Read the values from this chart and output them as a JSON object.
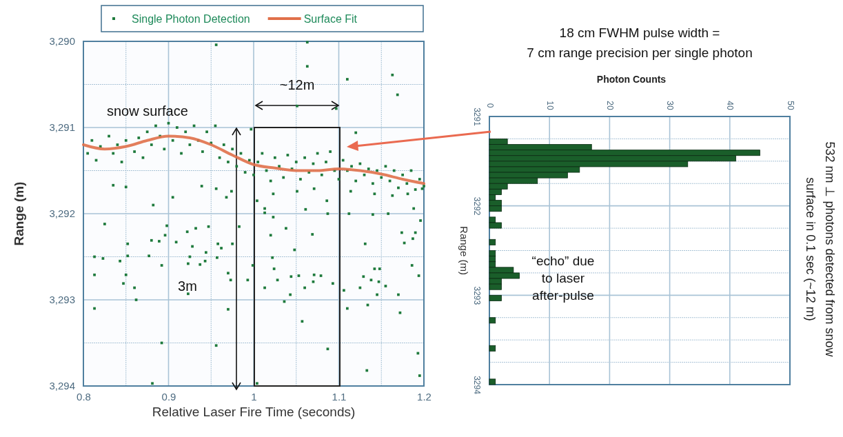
{
  "chart_data": [
    {
      "type": "scatter",
      "xlabel": "Relative Laser Fire Time (seconds)",
      "ylabel": "Range (m)",
      "xlim": [
        0.8,
        1.2
      ],
      "xticks": [
        0.8,
        {
          "value": 0.85,
          "label": null
        },
        0.9,
        {
          "value": 0.95,
          "label": null
        },
        1,
        {
          "value": 1.05,
          "label": null
        },
        1.1,
        {
          "value": 1.15,
          "label": null
        },
        1.2
      ],
      "ylim": [
        3294,
        3290
      ],
      "yticks": [
        {
          "value": 3290,
          "label": "3,290"
        },
        {
          "value": 3290.5,
          "label": null
        },
        {
          "value": 3291,
          "label": "3,291"
        },
        {
          "value": 3291.5,
          "label": null
        },
        {
          "value": 3292,
          "label": "3,292"
        },
        {
          "value": 3292.5,
          "label": null
        },
        {
          "value": 3293,
          "label": "3,293"
        },
        {
          "value": 3293.5,
          "label": null
        },
        {
          "value": 3294,
          "label": "3,294"
        }
      ],
      "grid": true,
      "legend": "top",
      "annotations": [
        "snow surface",
        "~12m",
        "3m"
      ],
      "series": [
        {
          "name": "Single Photon Detection",
          "type": "scatter",
          "color": "#1e7a3c",
          "marker": "square",
          "x": [
            0.825,
            0.813,
            0.813,
            0.813,
            0.823,
            0.843,
            0.847,
            0.85,
            0.852,
            0.852,
            0.86,
            0.862,
            0.877,
            0.88,
            0.881,
            0.889,
            0.892,
            0.892,
            0.896,
            0.898,
            0.909,
            0.922,
            0.923,
            0.923,
            0.925,
            0.928,
            0.932,
            0.937,
            0.943,
            0.944,
            0.947,
            0.956,
            0.957,
            0.958,
            0.962,
            0.97,
            0.97,
            0.973,
            0.975,
            0.983,
            0.993,
            0.999,
            1.004,
            1.013,
            1.013,
            1.02,
            1.022,
            1.023,
            1.024,
            1.028,
            1.036,
            1.038,
            1.043,
            1.044,
            1.048,
            1.053,
            1.057,
            1.06,
            1.061,
            1.069,
            1.07,
            1.071,
            1.079,
            1.087,
            1.087,
            1.093,
            1.106,
            1.11,
            1.112,
            1.125,
            1.129,
            1.131,
            1.134,
            1.133,
            1.138,
            1.14,
            1.142,
            1.145,
            1.147,
            1.148,
            1.155,
            1.158,
            1.17,
            1.172,
            1.174,
            1.177,
            1.186,
            1.187,
            1.19,
            1.193,
            1.194,
            1.195,
            1.196,
            0.956,
            1.063,
            1.063,
            1.11,
            1.163,
            1.169,
            1.051,
            1.097,
            1.12,
            0.997,
            0.882,
            0.905,
            0.85,
            0.835,
            0.939,
            0.956,
            0.968,
            0.974,
            1.004,
            1.013,
            1.023,
            1.051,
            1.071,
            1.086,
            1.114,
            1.142,
            1.163,
            1.181,
            1.198,
            1.188,
            0.805,
            0.81,
            0.815,
            0.82,
            0.83,
            0.835,
            0.84,
            0.845,
            0.85,
            0.86,
            0.865,
            0.87,
            0.875,
            0.88,
            0.885,
            0.89,
            0.895,
            0.9,
            0.905,
            0.91,
            0.915,
            0.92,
            0.925,
            0.93,
            0.935,
            0.94,
            0.945,
            0.95,
            0.955,
            0.96,
            0.965,
            0.97,
            0.975,
            0.98,
            0.985,
            0.99,
            0.995,
            1.0,
            1.005,
            1.01,
            1.015,
            1.02,
            1.025,
            1.03,
            1.035,
            1.04,
            1.045,
            1.05,
            1.055,
            1.06,
            1.065,
            1.07,
            1.075,
            1.08,
            1.085,
            1.09,
            1.095,
            1.1,
            1.105,
            1.11,
            1.115,
            1.12,
            1.125,
            1.13,
            1.135,
            1.14,
            1.145,
            1.15,
            1.155,
            1.16,
            1.165,
            1.17,
            1.175,
            1.18,
            1.185,
            1.19,
            1.195,
            1.2
          ],
          "values": [
            3292.12,
            3292.5,
            3292.71,
            3293.1,
            3292.52,
            3292.55,
            3292.81,
            3292.71,
            3292.35,
            3292.49,
            3292.86,
            3293.0,
            3292.49,
            3292.31,
            3293.97,
            3292.32,
            3292.6,
            3293.5,
            3292.25,
            3292.14,
            3292.33,
            3292.21,
            3292.93,
            3292.58,
            3292.5,
            3292.38,
            3292.17,
            3292.59,
            3292.55,
            3292.45,
            3292.15,
            3293.53,
            3292.51,
            3292.35,
            3292.4,
            3292.69,
            3293.11,
            3292.77,
            3292.35,
            3292.15,
            3292.77,
            3292.6,
            3293.97,
            3291.99,
            3292.86,
            3292.25,
            3292.51,
            3292.04,
            3292.64,
            3292.77,
            3293.02,
            3292.17,
            3292.94,
            3292.73,
            3292.42,
            3292.72,
            3293.25,
            3292.86,
            3291.95,
            3292.24,
            3292.79,
            3292.71,
            3292.72,
            3293.57,
            3292.0,
            3292.81,
            3292.89,
            3293.1,
            3292.0,
            3292.86,
            3292.73,
            3292.35,
            3293.06,
            3293.82,
            3292.77,
            3292.01,
            3292.64,
            3292.94,
            3292.79,
            3292.64,
            3292.84,
            3292.0,
            3292.94,
            3293.15,
            3292.22,
            3292.34,
            3292.6,
            3292.29,
            3292.22,
            3293.62,
            3292.72,
            3293.88,
            3292.08,
            3290.04,
            3290.01,
            3290.29,
            3290.44,
            3290.39,
            3290.62,
            3290.75,
            3290.78,
            3291.06,
            3291.02,
            3291.9,
            3291.81,
            3291.69,
            3291.67,
            3291.68,
            3291.71,
            3291.81,
            3291.74,
            3291.85,
            3291.94,
            3291.77,
            3291.74,
            3291.71,
            3291.85,
            3291.74,
            3291.77,
            3291.79,
            3291.77,
            3291.71,
            3291.94,
            3291.3,
            3291.15,
            3291.38,
            3291.22,
            3291.1,
            3291.3,
            3291.2,
            3291.4,
            3291.15,
            3291.28,
            3291.12,
            3291.35,
            3291.05,
            3291.2,
            3290.98,
            3291.1,
            3291.25,
            3290.95,
            3291.15,
            3291.0,
            3291.3,
            3291.05,
            3291.2,
            3290.98,
            3291.15,
            3291.28,
            3291.05,
            3291.18,
            3290.98,
            3291.35,
            3291.2,
            3291.4,
            3291.25,
            3291.45,
            3291.3,
            3291.52,
            3291.38,
            3291.55,
            3291.4,
            3291.3,
            3291.5,
            3291.62,
            3291.35,
            3291.45,
            3291.58,
            3291.32,
            3291.48,
            3291.4,
            3291.6,
            3291.35,
            3291.52,
            3291.42,
            3291.3,
            3291.55,
            3291.4,
            3291.28,
            3291.5,
            3291.6,
            3291.38,
            3291.5,
            3291.45,
            3291.62,
            3291.42,
            3291.55,
            3291.48,
            3291.65,
            3291.5,
            3291.58,
            3291.45,
            3291.62,
            3291.5,
            3291.7,
            3291.55,
            3291.65,
            3291.5,
            3291.72,
            3291.6,
            3291.68
          ]
        },
        {
          "name": "Surface Fit",
          "type": "line",
          "color": "#e0704a",
          "line_style": "solid",
          "marker": "none",
          "x": [
            0.8,
            0.825,
            0.85,
            0.875,
            0.9,
            0.925,
            0.95,
            0.975,
            1.0,
            1.025,
            1.05,
            1.075,
            1.1,
            1.125,
            1.15,
            1.175,
            1.2
          ],
          "values": [
            3291.2,
            3291.25,
            3291.22,
            3291.15,
            3291.1,
            3291.12,
            3291.2,
            3291.32,
            3291.43,
            3291.47,
            3291.5,
            3291.5,
            3291.48,
            3291.5,
            3291.54,
            3291.6,
            3291.65
          ]
        }
      ]
    },
    {
      "type": "histogram",
      "orientation": "horizontal",
      "title": "18 cm FWHM pulse width =",
      "subtitle": "7 cm range precision per single photon",
      "xlabel": "Photon Counts",
      "ylabel": "Range (m)",
      "y2label": "532 nm ⊥ photons detected from snow surface in 0.1 sec (~12 m)",
      "xlim": [
        0,
        50
      ],
      "xticks": [
        0,
        10,
        20,
        30,
        40,
        50
      ],
      "ylim": [
        3294,
        3291
      ],
      "yticks": [
        3291,
        {
          "value": 3291.25,
          "label": null
        },
        {
          "value": 3291.5,
          "label": null
        },
        {
          "value": 3291.75,
          "label": null
        },
        3292,
        {
          "value": 3292.25,
          "label": null
        },
        {
          "value": 3292.5,
          "label": null
        },
        {
          "value": 3292.75,
          "label": null
        },
        3293,
        {
          "value": 3293.25,
          "label": null
        },
        {
          "value": 3293.5,
          "label": null
        },
        {
          "value": 3293.75,
          "label": null
        },
        3294
      ],
      "grid": true,
      "color": "#1a5e2a",
      "annotations": [
        "“echo” due to laser after-pulse"
      ],
      "bins": [
        3291.25,
        3291.3125,
        3291.375,
        3291.4375,
        3291.5,
        3291.5625,
        3291.625,
        3291.6875,
        3291.75,
        3291.8125,
        3291.875,
        3291.9375,
        3292,
        3292.0625,
        3292.125,
        3292.1875,
        3292.25,
        3292.3125,
        3292.375,
        3292.4375,
        3292.5,
        3292.5625,
        3292.625,
        3292.6875,
        3292.75,
        3292.8125,
        3292.875,
        3292.9375,
        3293,
        3293.0625,
        3293.125,
        3293.1875,
        3293.25,
        3293.3125,
        3293.375,
        3293.4375,
        3293.5,
        3293.5625,
        3293.625,
        3293.6875,
        3293.75,
        3293.8125,
        3293.875,
        3293.9375,
        3294
      ],
      "values": [
        3,
        17,
        45,
        41,
        33,
        15,
        13,
        8,
        3,
        2,
        1,
        2,
        2,
        0,
        1,
        2,
        0,
        0,
        1,
        0,
        1,
        1,
        1,
        4,
        5,
        2,
        2,
        0,
        2,
        0,
        0,
        0,
        1,
        0,
        0,
        0,
        0,
        1,
        0,
        0,
        0,
        0,
        0,
        1
      ]
    }
  ]
}
